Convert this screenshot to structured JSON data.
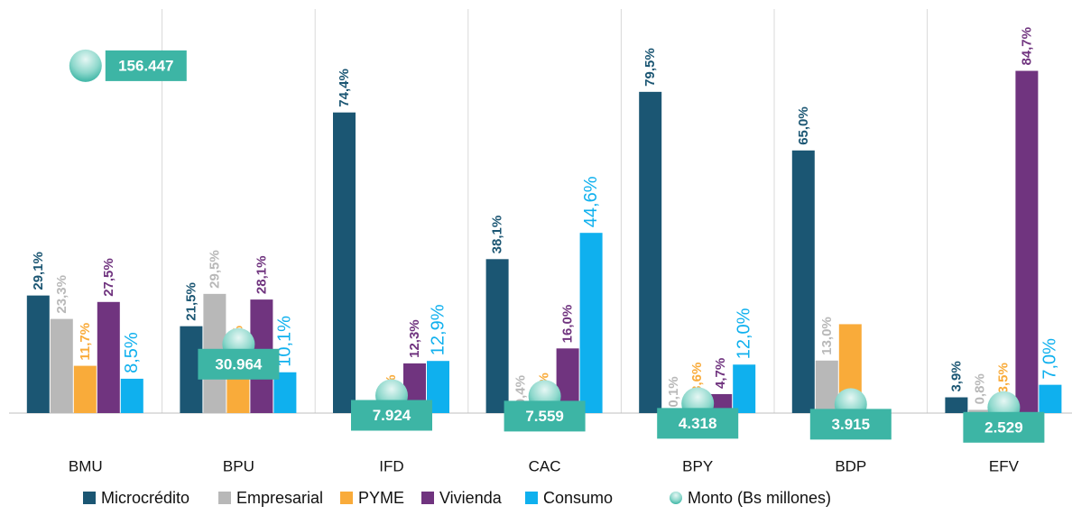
{
  "chart_data": {
    "type": "bar",
    "categories": [
      "BMU",
      "BPU",
      "IFD",
      "CAC",
      "BPY",
      "BDP",
      "EFV"
    ],
    "ylim": [
      0,
      100
    ],
    "y2lim": [
      0,
      182000
    ],
    "grid": "vertical",
    "legend": "bottom",
    "series": [
      {
        "name": "Microcrédito",
        "color": "#1b5673",
        "values": [
          29.1,
          21.5,
          74.4,
          38.1,
          79.5,
          65.0,
          3.9
        ],
        "value_labels": [
          "29,1%",
          "21,5%",
          "74,4%",
          "38,1%",
          "79,5%",
          "65,0%",
          "3,9%"
        ]
      },
      {
        "name": "Empresarial",
        "color": "#b8b8b8",
        "values": [
          23.3,
          29.5,
          null,
          0.4,
          0.1,
          13.0,
          0.8
        ],
        "value_labels": [
          "23,3%",
          "29,5%",
          null,
          "0,4%",
          "0,1%",
          "13,0%",
          "0,8%"
        ]
      },
      {
        "name": "PYME",
        "color": "#f9ab3a",
        "values": [
          11.7,
          10.8,
          0.5,
          1.0,
          3.6,
          22.0,
          3.5
        ],
        "value_labels": [
          "11,7%",
          "10,8%",
          "0,5%",
          "1,0%",
          "3,6%",
          null,
          "3,5%"
        ]
      },
      {
        "name": "Vivienda",
        "color": "#70347f",
        "values": [
          27.5,
          28.1,
          12.3,
          16.0,
          4.7,
          null,
          84.7
        ],
        "value_labels": [
          "27,5%",
          "28,1%",
          "12,3%",
          "16,0%",
          "4,7%",
          null,
          "84,7%"
        ]
      },
      {
        "name": "Consumo",
        "color": "#0fb0ee",
        "values": [
          8.5,
          10.1,
          12.9,
          44.6,
          12.0,
          null,
          7.0
        ],
        "value_labels": [
          "8,5%",
          "10,1%",
          "12,9%",
          "44,6%",
          "12,0%",
          null,
          "7,0%"
        ]
      },
      {
        "name": "Monto (Bs millones)",
        "color": "#3db5a5",
        "axis": "y2",
        "marker": "circle",
        "values": [
          156447,
          30964,
          7924,
          7559,
          4318,
          3915,
          2529
        ],
        "value_labels": [
          "156.447",
          "30.964",
          "7.924",
          "7.559",
          "4.318",
          "3.915",
          "2.529"
        ]
      }
    ]
  }
}
